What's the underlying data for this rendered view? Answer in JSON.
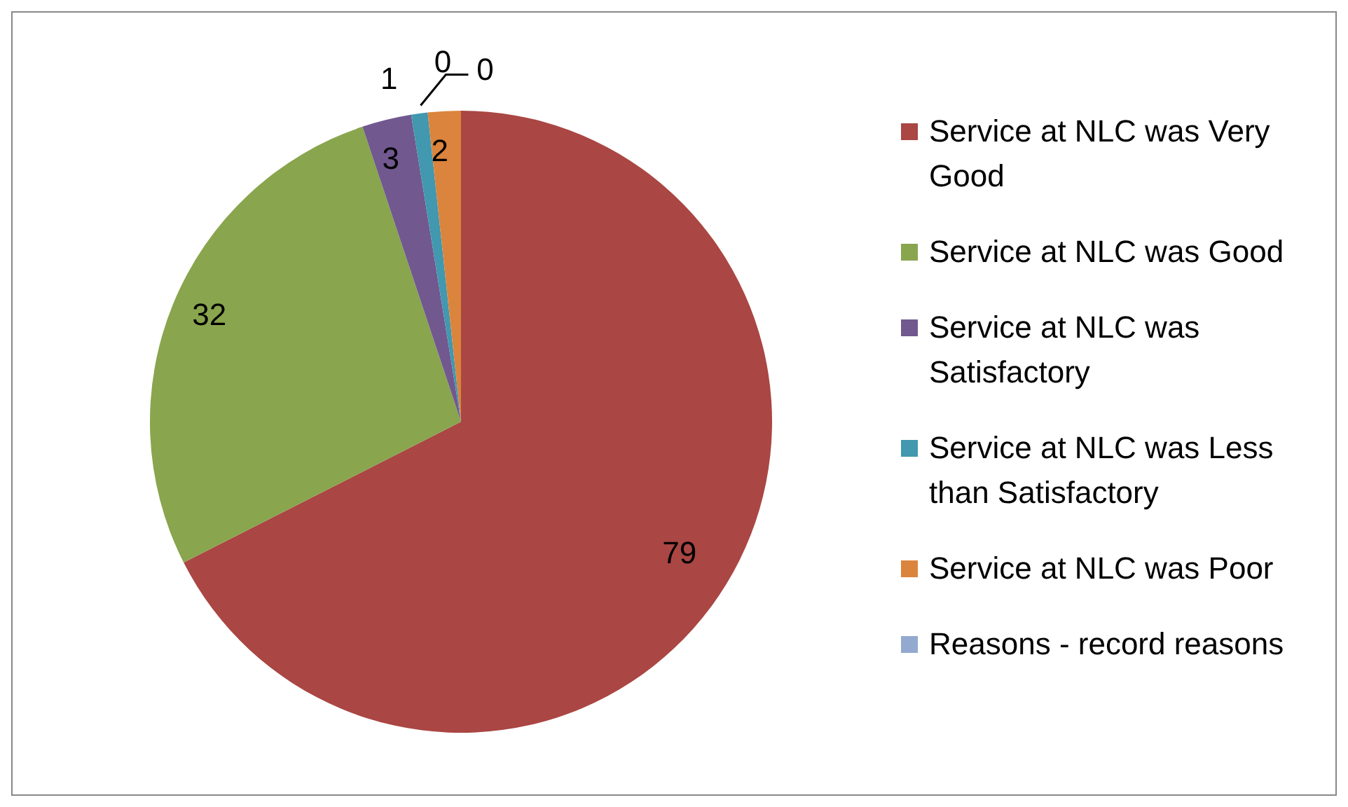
{
  "chart_data": {
    "type": "pie",
    "categories": [
      "Service at NLC was Very Good",
      "Service at NLC was Good",
      "Service at NLC was Satisfactory",
      "Service at NLC was Less than Satisfactory",
      null,
      "Service at NLC was Poor",
      "Reasons - record reasons"
    ],
    "values": [
      79,
      32,
      3,
      1,
      0,
      2,
      0
    ],
    "colors": [
      "#aa4643",
      "#89a54e",
      "#71588f",
      "#4198af",
      "#3d96ae",
      "#db843d",
      "#93a9cf"
    ],
    "value_labels": [
      "79",
      "32",
      "3",
      "1",
      "0",
      "2",
      "0"
    ],
    "legend": "right"
  }
}
